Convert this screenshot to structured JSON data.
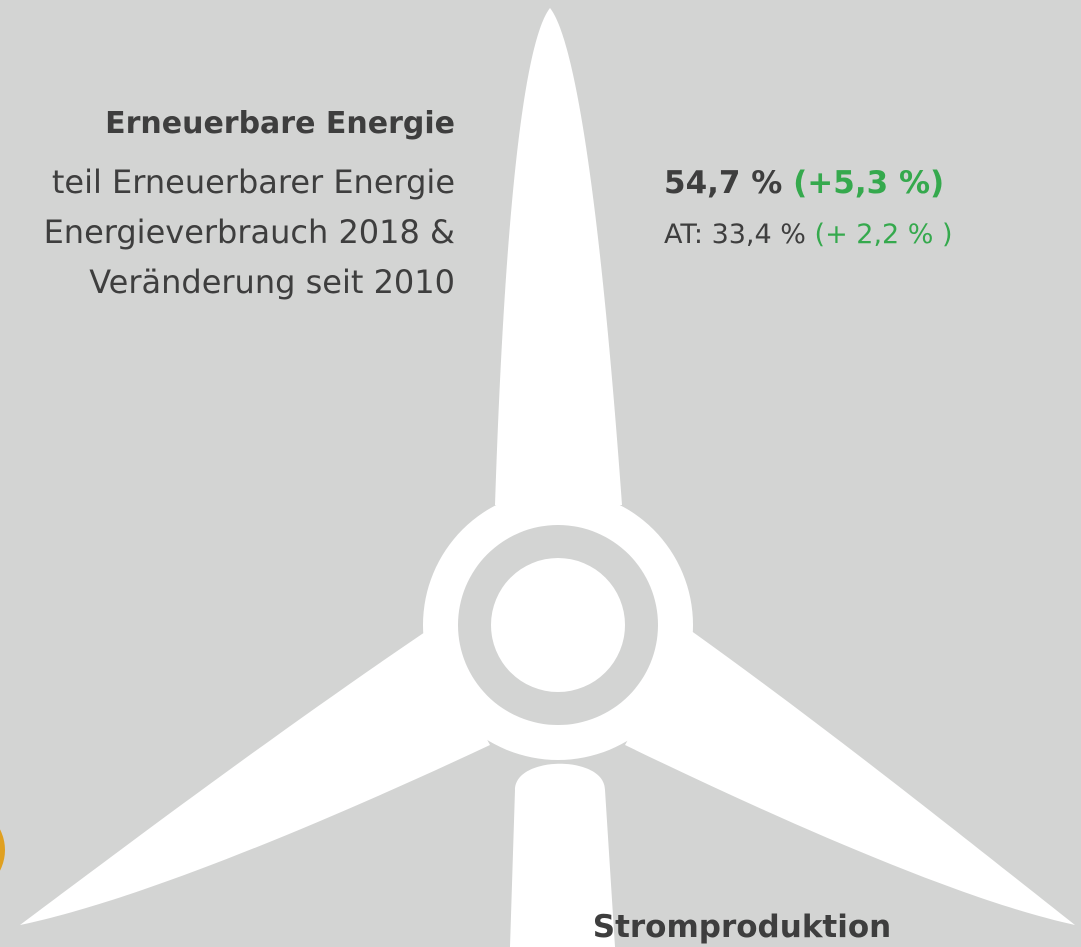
{
  "section": {
    "title": "Erneuerbare Energie",
    "lines": [
      "teil Erneuerbarer Energie",
      "Energieverbrauch 2018 &",
      "Veränderung seit 2010"
    ]
  },
  "stats": {
    "value": "54,7 %",
    "change": "(+5,3 %)",
    "at_value": "AT: 33,4 %",
    "at_change": "(+ 2,2 % )"
  },
  "footer_title": "Stromproduktion"
}
